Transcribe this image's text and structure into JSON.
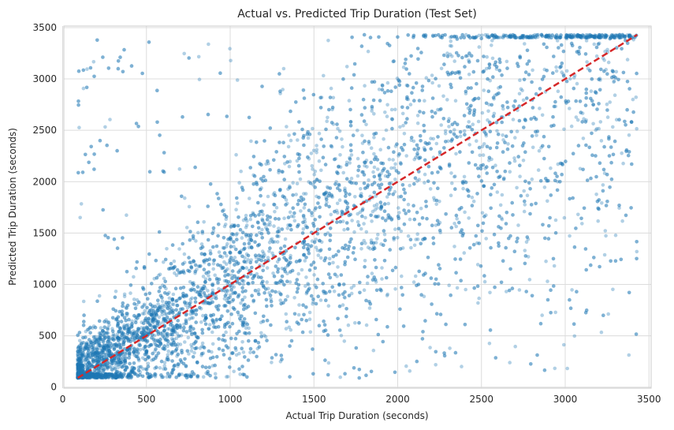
{
  "chart_data": {
    "type": "scatter",
    "title": "Actual vs. Predicted Trip Duration (Test Set)",
    "xlabel": "Actual Trip Duration (seconds)",
    "ylabel": "Predicted Trip Duration (seconds)",
    "xlim": [
      7,
      3513
    ],
    "ylim": [
      -10,
      3515
    ],
    "xticks": [
      0,
      500,
      1000,
      1500,
      2000,
      2500,
      3000,
      3500
    ],
    "yticks": [
      0,
      500,
      1000,
      1500,
      2000,
      2500,
      3000,
      3500
    ],
    "xtick_labels": [
      "0",
      "500",
      "1000",
      "1500",
      "2000",
      "2500",
      "3000",
      "3500"
    ],
    "ytick_labels": [
      "0",
      "500",
      "1000",
      "1500",
      "2000",
      "2500",
      "3000",
      "3500"
    ],
    "grid": true,
    "point_color": "#1f77b4",
    "point_opacity": 0.35,
    "value_range": [
      90,
      3430
    ],
    "reference_line": {
      "label": "y = x",
      "x": [
        90,
        3430
      ],
      "y": [
        90,
        3430
      ],
      "color": "#d62728",
      "style": "dashed"
    }
  }
}
